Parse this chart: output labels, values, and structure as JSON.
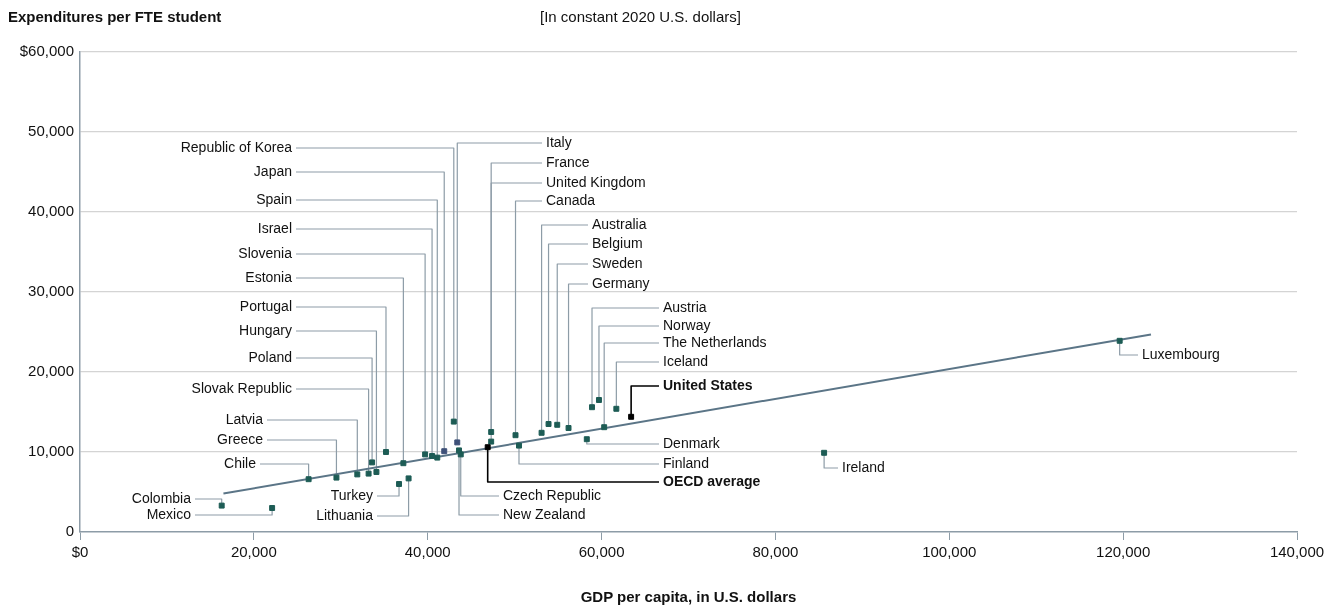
{
  "chart_data": {
    "type": "scatter",
    "ylabel": "Expenditures per FTE student",
    "subtitle": "[In constant 2020 U.S. dollars]",
    "xlabel": "GDP per capita, in U.S. dollars",
    "xlim": [
      0,
      140000
    ],
    "xticks": [
      {
        "value": 0,
        "label": "$0"
      },
      {
        "value": 20000,
        "label": "20,000"
      },
      {
        "value": 40000,
        "label": "40,000"
      },
      {
        "value": 60000,
        "label": "60,000"
      },
      {
        "value": 80000,
        "label": "80,000"
      },
      {
        "value": 100000,
        "label": "100,000"
      },
      {
        "value": 120000,
        "label": "120,000"
      },
      {
        "value": 140000,
        "label": "140,000"
      }
    ],
    "ylim": [
      0,
      60000
    ],
    "yticks": [
      0,
      {
        "value": 10000,
        "label": "10,000"
      },
      {
        "value": 20000,
        "label": "20,000"
      },
      {
        "value": 30000,
        "label": "30,000"
      },
      {
        "value": 40000,
        "label": "40,000"
      },
      {
        "value": 50000,
        "label": "50,000"
      },
      {
        "value": 60000,
        "label": "$60,000"
      }
    ],
    "grid": "y",
    "legend": false,
    "marker": "square",
    "series": [
      {
        "x": [
          43000,
          41900,
          41100,
          40500,
          39700,
          37200,
          35200,
          34100,
          33600,
          33200,
          31900,
          29500,
          26300,
          16300,
          22100,
          36700,
          37800,
          43400,
          47300,
          47300,
          50100,
          53100,
          53900,
          54900,
          56200,
          58900,
          59700,
          60300,
          61700,
          63400,
          58300,
          50500,
          46900,
          43800,
          43600,
          85600,
          119600
        ],
        "values": [
          13800,
          10100,
          9300,
          9500,
          9700,
          8600,
          10000,
          7500,
          8700,
          7300,
          7200,
          6800,
          6600,
          3300,
          3000,
          6000,
          6700,
          11200,
          12500,
          11300,
          12100,
          12400,
          13500,
          13400,
          13000,
          15600,
          16500,
          13100,
          15400,
          14400,
          11600,
          10800,
          10600,
          9700,
          10200,
          9900,
          23900
        ],
        "colors": [
          "#1d5c55",
          "#3e5078",
          "#1d5c55",
          "#1d5c55",
          "#1d5c55",
          "#1d5c55",
          "#1d5c55",
          "#1d5c55",
          "#1d5c55",
          "#1d5c55",
          "#1d5c55",
          "#1d5c55",
          "#1d5c55",
          "#1d5c55",
          "#1d5c55",
          "#1d5c55",
          "#1d5c55",
          "#3e5078",
          "#1d5c55",
          "#1d5c55",
          "#1d5c55",
          "#1d5c55",
          "#1d5c55",
          "#1d5c55",
          "#1d5c55",
          "#1d5c55",
          "#1d5c55",
          "#1d5c55",
          "#1d5c55",
          "#000000",
          "#1d5c55",
          "#1d5c55",
          "#000000",
          "#1d5c55",
          "#1d5c55",
          "#1d5c55",
          "#1d5c55"
        ]
      },
      {
        "type": "line",
        "x": [
          16500,
          123200
        ],
        "values": [
          4800,
          24700
        ],
        "color": "#5b7587",
        "marker": "none"
      }
    ],
    "annotations": [
      {
        "text": "Republic of Korea",
        "x": 43000,
        "y": 13800
      },
      {
        "text": "Japan",
        "x": 41900,
        "y": 10100
      },
      {
        "text": "Spain",
        "x": 41100,
        "y": 9300
      },
      {
        "text": "Israel",
        "x": 40500,
        "y": 9500
      },
      {
        "text": "Slovenia",
        "x": 39700,
        "y": 9700
      },
      {
        "text": "Estonia",
        "x": 37200,
        "y": 8600
      },
      {
        "text": "Portugal",
        "x": 35200,
        "y": 10000
      },
      {
        "text": "Hungary",
        "x": 34100,
        "y": 7500
      },
      {
        "text": "Poland",
        "x": 33600,
        "y": 8700
      },
      {
        "text": "Slovak Republic",
        "x": 33200,
        "y": 7300
      },
      {
        "text": "Latvia",
        "x": 31900,
        "y": 7200
      },
      {
        "text": "Greece",
        "x": 29500,
        "y": 6800
      },
      {
        "text": "Chile",
        "x": 26300,
        "y": 6600
      },
      {
        "text": "Colombia",
        "x": 16300,
        "y": 3300
      },
      {
        "text": "Mexico",
        "x": 22100,
        "y": 3000
      },
      {
        "text": "Turkey",
        "x": 36700,
        "y": 6000
      },
      {
        "text": "Lithuania",
        "x": 37800,
        "y": 6700
      },
      {
        "text": "Italy",
        "x": 43400,
        "y": 11200
      },
      {
        "text": "France",
        "x": 47300,
        "y": 12500
      },
      {
        "text": "United Kingdom",
        "x": 47300,
        "y": 11300
      },
      {
        "text": "Canada",
        "x": 50100,
        "y": 12100
      },
      {
        "text": "Australia",
        "x": 53100,
        "y": 12400
      },
      {
        "text": "Belgium",
        "x": 53900,
        "y": 13500
      },
      {
        "text": "Sweden",
        "x": 54900,
        "y": 13400
      },
      {
        "text": "Germany",
        "x": 56200,
        "y": 13000
      },
      {
        "text": "Austria",
        "x": 58900,
        "y": 15600
      },
      {
        "text": "Norway",
        "x": 59700,
        "y": 16500
      },
      {
        "text": "The Netherlands",
        "x": 60300,
        "y": 13100
      },
      {
        "text": "Iceland",
        "x": 61700,
        "y": 15400
      },
      {
        "text": "United States",
        "x": 63400,
        "y": 14400
      },
      {
        "text": "Denmark",
        "x": 58300,
        "y": 11600
      },
      {
        "text": "Finland",
        "x": 50500,
        "y": 10800
      },
      {
        "text": "OECD average",
        "x": 46900,
        "y": 10600
      },
      {
        "text": "Czech Republic",
        "x": 43800,
        "y": 9700
      },
      {
        "text": "New Zealand",
        "x": 43600,
        "y": 10200
      },
      {
        "text": "Ireland",
        "x": 85600,
        "y": 9900
      },
      {
        "text": "Luxembourg",
        "x": 119600,
        "y": 23900
      }
    ]
  }
}
